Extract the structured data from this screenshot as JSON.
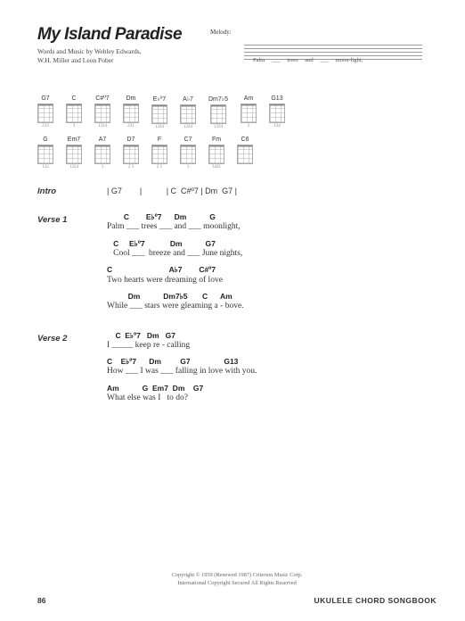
{
  "title": "My Island Paradise",
  "credits_l1": "Words and Music by Webley Edwards,",
  "credits_l2": "W.H. Miller and Leon Pober",
  "melody_label": "Melody:",
  "melody_lyric": "Palm ___ trees  and ___ moon-light,",
  "chords_r1": [
    {
      "n": "G7",
      "f": "213"
    },
    {
      "n": "C",
      "f": "3"
    },
    {
      "n": "C#º7",
      "f": "1324"
    },
    {
      "n": "Dm",
      "f": "231"
    },
    {
      "n": "E♭º7",
      "f": "1324"
    },
    {
      "n": "A♭7",
      "f": "1324"
    },
    {
      "n": "Dm7♭5",
      "f": "1324"
    },
    {
      "n": "Am",
      "f": "2"
    },
    {
      "n": "G13",
      "f": "134"
    }
  ],
  "chords_r2": [
    {
      "n": "G",
      "f": "132"
    },
    {
      "n": "Em7",
      "f": "1324"
    },
    {
      "n": "A7",
      "f": "1"
    },
    {
      "n": "D7",
      "f": "2 3"
    },
    {
      "n": "F",
      "f": "2 1"
    },
    {
      "n": "C7",
      "f": "1"
    },
    {
      "n": "Fm",
      "f": "3421"
    },
    {
      "n": "C6",
      "f": ""
    }
  ],
  "sections": [
    {
      "label": "Intro",
      "type": "bars",
      "bars": "| G7        |           | C  C#º7 | Dm  G7 |"
    },
    {
      "label": "Verse 1",
      "lines": [
        {
          "c": "        C        E♭º7      Dm           G",
          "l": "Palm ___ trees ___ and ___ moonlight,"
        },
        {
          "c": "   C     E♭º7            Dm           G7",
          "l": "   Cool ___  breeze and ___ June nights,"
        },
        {
          "c": "C                           A♭7        C#º7",
          "l": "Two hearts were dreaming of love"
        },
        {
          "c": "          Dm           Dm7♭5       C      Am",
          "l": "While ___ stars were gleaming a - bove."
        }
      ]
    },
    {
      "label": "Verse 2",
      "lines": [
        {
          "c": "    C  E♭º7   Dm   G7",
          "l": "I _____ keep re - calling"
        },
        {
          "c": "C    E♭º7      Dm         G7                G13",
          "l": "How ___ I was ___ falling in love with you."
        },
        {
          "c": "Am           G  Em7  Dm    G7",
          "l": "What else was I   to do?"
        }
      ]
    }
  ],
  "copyright_l1": "Copyright © 1959 (Renewed 1987) Criterion Music Corp.",
  "copyright_l2": "International Copyright Secured   All Rights Reserved",
  "page_number": "86",
  "book": "UKULELE CHORD SONGBOOK"
}
